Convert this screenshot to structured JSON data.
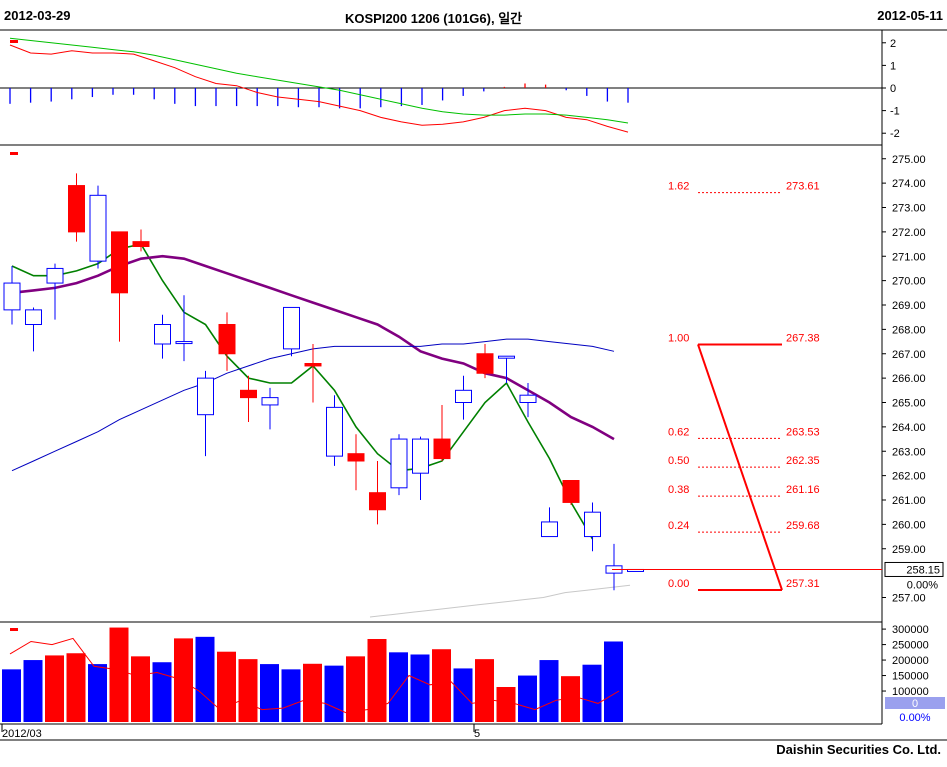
{
  "header": {
    "start_date": "2012-03-29",
    "title": "KOSPI200 1206 (101G6), 일간",
    "end_date": "2012-05-11"
  },
  "footer": {
    "brand": "Daishin Securities Co. Ltd."
  },
  "colors": {
    "up": "#ff0000",
    "down": "#0000ff",
    "ma_short": "#008000",
    "ma_mid": "#800080",
    "ma_long": "#0000c0",
    "ma_vlong": "#c8c8c8",
    "fib": "#ff0000"
  },
  "chart_data": [
    {
      "type": "line",
      "panel": "oscillator",
      "ylim": [
        -2.3,
        2.3
      ],
      "y_ticks": [
        "2",
        "1",
        "0",
        "-1",
        "-2"
      ],
      "series": [
        {
          "values": [
            1.9,
            1.55,
            1.5,
            1.65,
            1.55,
            1.55,
            1.5,
            1.2,
            0.9,
            0.5,
            0.2,
            0.1,
            -0.2,
            -0.4,
            -0.5,
            -0.6,
            -0.8,
            -1.0,
            -1.3,
            -1.5,
            -1.65,
            -1.6,
            -1.5,
            -1.3,
            -1.0,
            -0.9,
            -1.0,
            -1.3,
            -1.4,
            -1.7,
            -1.95
          ]
        },
        {
          "values": [
            2.2,
            2.1,
            2.0,
            1.9,
            1.8,
            1.7,
            1.6,
            1.45,
            1.25,
            1.05,
            0.85,
            0.65,
            0.5,
            0.35,
            0.2,
            0.05,
            -0.1,
            -0.3,
            -0.5,
            -0.7,
            -0.9,
            -1.05,
            -1.15,
            -1.2,
            -1.2,
            -1.15,
            -1.15,
            -1.2,
            -1.3,
            -1.4,
            -1.55
          ]
        }
      ],
      "bars": [
        -0.7,
        -0.65,
        -0.6,
        -0.5,
        -0.4,
        -0.3,
        -0.3,
        -0.5,
        -0.7,
        -0.8,
        -0.8,
        -0.8,
        -0.8,
        -0.8,
        -0.85,
        -0.85,
        -0.9,
        -0.9,
        -0.85,
        -0.8,
        -0.75,
        -0.55,
        -0.35,
        -0.15,
        0.05,
        0.2,
        0.15,
        -0.1,
        -0.35,
        -0.6,
        -0.65
      ]
    },
    {
      "type": "candlestick",
      "panel": "price",
      "ylim": [
        256.2,
        275.4
      ],
      "y_ticks": [
        "275.00",
        "274.00",
        "273.00",
        "272.00",
        "271.00",
        "270.00",
        "269.00",
        "268.00",
        "267.00",
        "266.00",
        "265.00",
        "264.00",
        "263.00",
        "262.00",
        "261.00",
        "260.00",
        "259.00",
        "257.00"
      ],
      "last_price": "258.15",
      "last_change": "0.00%",
      "candles": [
        {
          "o": 268.8,
          "h": 270.6,
          "l": 268.2,
          "c": 269.9
        },
        {
          "o": 268.2,
          "h": 268.9,
          "l": 267.1,
          "c": 268.8
        },
        {
          "o": 269.9,
          "h": 270.7,
          "l": 268.4,
          "c": 270.5
        },
        {
          "o": 273.9,
          "h": 274.4,
          "l": 271.6,
          "c": 272.0
        },
        {
          "o": 270.8,
          "h": 273.9,
          "l": 270.5,
          "c": 273.5
        },
        {
          "o": 272.0,
          "h": 272.0,
          "l": 267.5,
          "c": 269.5
        },
        {
          "o": 271.6,
          "h": 272.1,
          "l": 271.2,
          "c": 271.4
        },
        {
          "o": 267.4,
          "h": 268.6,
          "l": 266.8,
          "c": 268.2
        },
        {
          "o": 267.5,
          "h": 269.4,
          "l": 266.7,
          "c": 267.5
        },
        {
          "o": 264.5,
          "h": 266.3,
          "l": 262.8,
          "c": 266.0
        },
        {
          "o": 268.2,
          "h": 268.7,
          "l": 266.3,
          "c": 267.0
        },
        {
          "o": 265.5,
          "h": 266.1,
          "l": 264.2,
          "c": 265.2
        },
        {
          "o": 264.9,
          "h": 265.6,
          "l": 263.9,
          "c": 265.2
        },
        {
          "o": 267.2,
          "h": 268.9,
          "l": 266.9,
          "c": 268.9
        },
        {
          "o": 266.6,
          "h": 267.4,
          "l": 265.0,
          "c": 266.5
        },
        {
          "o": 262.8,
          "h": 265.3,
          "l": 262.4,
          "c": 264.8
        },
        {
          "o": 262.9,
          "h": 263.7,
          "l": 261.4,
          "c": 262.6
        },
        {
          "o": 261.3,
          "h": 262.6,
          "l": 260.0,
          "c": 260.6
        },
        {
          "o": 261.5,
          "h": 263.7,
          "l": 261.2,
          "c": 263.5
        },
        {
          "o": 262.1,
          "h": 263.6,
          "l": 261.0,
          "c": 263.5
        },
        {
          "o": 263.5,
          "h": 264.9,
          "l": 262.6,
          "c": 262.7
        },
        {
          "o": 265.0,
          "h": 266.1,
          "l": 264.3,
          "c": 265.5
        },
        {
          "o": 267.0,
          "h": 267.4,
          "l": 266.0,
          "c": 266.2
        },
        {
          "o": 266.9,
          "h": 266.9,
          "l": 265.8,
          "c": 266.9
        },
        {
          "o": 265.0,
          "h": 265.8,
          "l": 264.4,
          "c": 265.3
        },
        {
          "o": 259.5,
          "h": 260.7,
          "l": 259.5,
          "c": 260.1
        },
        {
          "o": 261.8,
          "h": 261.8,
          "l": 260.8,
          "c": 260.9
        },
        {
          "o": 259.5,
          "h": 260.9,
          "l": 258.9,
          "c": 260.5
        },
        {
          "o": 258.0,
          "h": 259.2,
          "l": 257.3,
          "c": 258.3
        },
        {
          "o": 258.15,
          "h": 258.15,
          "l": 258.15,
          "c": 258.15
        }
      ],
      "moving_averages": [
        {
          "color": "ma_short",
          "values": [
            270.6,
            270.2,
            270.2,
            270.4,
            270.7,
            271.3,
            271.5,
            270.0,
            268.7,
            268.2,
            266.9,
            266.0,
            265.8,
            265.8,
            266.5,
            265.5,
            264.0,
            262.9,
            262.2,
            262.3,
            262.6,
            263.8,
            265.0,
            265.8,
            264.2,
            262.7,
            260.9,
            259.4
          ]
        },
        {
          "color": "ma_mid",
          "values": [
            269.5,
            269.6,
            269.7,
            269.9,
            270.2,
            270.6,
            270.9,
            271.0,
            270.9,
            270.6,
            270.3,
            270.0,
            269.7,
            269.4,
            269.1,
            268.8,
            268.5,
            268.2,
            267.7,
            267.1,
            266.8,
            266.6,
            266.2,
            266.0,
            265.5,
            265.0,
            264.4,
            264.0,
            263.5
          ]
        },
        {
          "color": "ma_long",
          "values": [
            262.2,
            262.6,
            263.0,
            263.4,
            263.8,
            264.3,
            264.7,
            265.1,
            265.5,
            265.8,
            266.2,
            266.5,
            266.8,
            267.0,
            267.2,
            267.3,
            267.3,
            267.3,
            267.3,
            267.3,
            267.4,
            267.4,
            267.5,
            267.6,
            267.6,
            267.5,
            267.4,
            267.3,
            267.1
          ]
        },
        {
          "color": "ma_vlong",
          "values": [
            256.2,
            256.3,
            256.4,
            256.5,
            256.6,
            256.7,
            256.8,
            256.9,
            257.0,
            257.2,
            257.3,
            257.4,
            257.5
          ]
        }
      ],
      "fibonacci": [
        {
          "ratio": "1.62",
          "price": "273.61"
        },
        {
          "ratio": "1.00",
          "price": "267.38"
        },
        {
          "ratio": "0.62",
          "price": "263.53"
        },
        {
          "ratio": "0.50",
          "price": "262.35"
        },
        {
          "ratio": "0.38",
          "price": "261.16"
        },
        {
          "ratio": "0.24",
          "price": "259.68"
        },
        {
          "ratio": "0.00",
          "price": "257.31"
        }
      ]
    },
    {
      "type": "bar",
      "panel": "volume",
      "ylim": [
        0,
        310000
      ],
      "y_ticks": [
        "300000",
        "250000",
        "200000",
        "150000",
        "100000"
      ],
      "last_value": "0",
      "last_change": "0.00%",
      "x_tick_labels": [
        "2012/03",
        "5"
      ],
      "bars": [
        {
          "v": 170000,
          "up": false
        },
        {
          "v": 200000,
          "up": false
        },
        {
          "v": 215000,
          "up": true
        },
        {
          "v": 222000,
          "up": true
        },
        {
          "v": 187000,
          "up": false
        },
        {
          "v": 305000,
          "up": true
        },
        {
          "v": 212000,
          "up": true
        },
        {
          "v": 193000,
          "up": false
        },
        {
          "v": 270000,
          "up": true
        },
        {
          "v": 275000,
          "up": false
        },
        {
          "v": 227000,
          "up": true
        },
        {
          "v": 203000,
          "up": true
        },
        {
          "v": 187000,
          "up": false
        },
        {
          "v": 170000,
          "up": false
        },
        {
          "v": 188000,
          "up": true
        },
        {
          "v": 182000,
          "up": false
        },
        {
          "v": 212000,
          "up": true
        },
        {
          "v": 268000,
          "up": true
        },
        {
          "v": 225000,
          "up": false
        },
        {
          "v": 218000,
          "up": false
        },
        {
          "v": 235000,
          "up": true
        },
        {
          "v": 173000,
          "up": false
        },
        {
          "v": 203000,
          "up": true
        },
        {
          "v": 113000,
          "up": true
        },
        {
          "v": 150000,
          "up": false
        },
        {
          "v": 200000,
          "up": false
        },
        {
          "v": 148000,
          "up": true
        },
        {
          "v": 185000,
          "up": false
        },
        {
          "v": 260000,
          "up": false
        }
      ],
      "line": [
        220000,
        260000,
        250000,
        270000,
        180000,
        170000,
        150000,
        160000,
        140000,
        100000,
        40000,
        70000,
        40000,
        45000,
        70000,
        60000,
        30000,
        40000,
        60000,
        150000,
        120000,
        130000,
        60000,
        70000,
        60000,
        40000,
        70000,
        80000,
        60000,
        100000
      ]
    }
  ]
}
